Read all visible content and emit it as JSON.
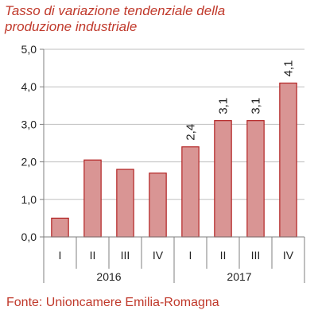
{
  "chart_data": {
    "type": "bar",
    "title_lines": [
      "Tasso di variazione tendenziale della",
      "produzione industriale"
    ],
    "xlabel": "",
    "ylabel": "",
    "ylim": [
      0,
      5
    ],
    "y_ticks": [
      "0,0",
      "1,0",
      "2,0",
      "3,0",
      "4,0",
      "5,0"
    ],
    "y_tick_values": [
      0,
      1,
      2,
      3,
      4,
      5
    ],
    "categories": [
      "I",
      "II",
      "III",
      "IV",
      "I",
      "II",
      "III",
      "IV"
    ],
    "groups": [
      {
        "label": "2016",
        "count": 4
      },
      {
        "label": "2017",
        "count": 4
      }
    ],
    "values": [
      0.5,
      2.05,
      1.8,
      1.7,
      2.4,
      3.1,
      3.1,
      4.1
    ],
    "data_labels": [
      "",
      "",
      "",
      "",
      "2,4",
      "3,1",
      "3,1",
      "4,1"
    ],
    "grid": true,
    "legend": "none",
    "source": "Fonte: Unioncamere Emilia-Romagna",
    "colors": {
      "bar_fill": "#d99594",
      "bar_stroke": "#b22222",
      "title": "#c0392b",
      "grid": "#bfbfbf",
      "axis": "#7f7f7f"
    }
  }
}
